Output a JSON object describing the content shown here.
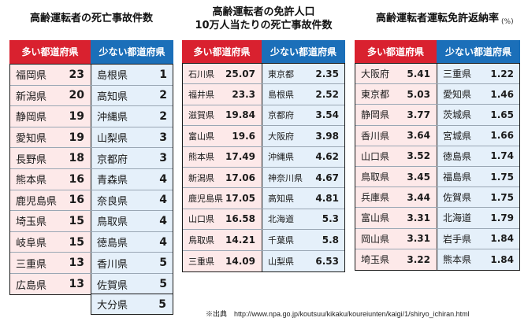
{
  "panel1": {
    "title": "高齢運転者の死亡事故件数",
    "header_many": "多い都道府県",
    "header_few": "少ない都道府県",
    "many": [
      {
        "name": "福岡県",
        "value": "23"
      },
      {
        "name": "新潟県",
        "value": "20"
      },
      {
        "name": "静岡県",
        "value": "19"
      },
      {
        "name": "愛知県",
        "value": "19"
      },
      {
        "name": "長野県",
        "value": "18"
      },
      {
        "name": "熊本県",
        "value": "16"
      },
      {
        "name": "鹿児島県",
        "value": "16"
      },
      {
        "name": "埼玉県",
        "value": "15"
      },
      {
        "name": "岐阜県",
        "value": "15"
      },
      {
        "name": "三重県",
        "value": "13"
      },
      {
        "name": "広島県",
        "value": "13"
      }
    ],
    "few": [
      {
        "name": "島根県",
        "value": "1"
      },
      {
        "name": "高知県",
        "value": "2"
      },
      {
        "name": "沖縄県",
        "value": "2"
      },
      {
        "name": "山梨県",
        "value": "3"
      },
      {
        "name": "京都府",
        "value": "3"
      },
      {
        "name": "青森県",
        "value": "4"
      },
      {
        "name": "奈良県",
        "value": "4"
      },
      {
        "name": "鳥取県",
        "value": "4"
      },
      {
        "name": "徳島県",
        "value": "4"
      },
      {
        "name": "香川県",
        "value": "5"
      },
      {
        "name": "佐賀県",
        "value": "5"
      },
      {
        "name": "大分県",
        "value": "5"
      }
    ]
  },
  "panel2": {
    "title_line1": "高齢運転者の免許人口",
    "title_line2": "10万人当たりの死亡事故件数",
    "header_many": "多い都道府県",
    "header_few": "少ない都道府県",
    "many": [
      {
        "name": "石川県",
        "value": "25.07"
      },
      {
        "name": "福井県",
        "value": "23.3"
      },
      {
        "name": "滋賀県",
        "value": "19.84"
      },
      {
        "name": "富山県",
        "value": "19.6"
      },
      {
        "name": "熊本県",
        "value": "17.49"
      },
      {
        "name": "新潟県",
        "value": "17.06"
      },
      {
        "name": "鹿児島県",
        "value": "17.05"
      },
      {
        "name": "山口県",
        "value": "16.58"
      },
      {
        "name": "鳥取県",
        "value": "14.21"
      },
      {
        "name": "三重県",
        "value": "14.09"
      }
    ],
    "few": [
      {
        "name": "東京都",
        "value": "2.35"
      },
      {
        "name": "島根県",
        "value": "2.52"
      },
      {
        "name": "京都府",
        "value": "3.54"
      },
      {
        "name": "大阪府",
        "value": "3.98"
      },
      {
        "name": "沖縄県",
        "value": "4.62"
      },
      {
        "name": "神奈川県",
        "value": "4.67"
      },
      {
        "name": "高知県",
        "value": "4.81"
      },
      {
        "name": "北海道",
        "value": "5.3"
      },
      {
        "name": "千葉県",
        "value": "5.8"
      },
      {
        "name": "山梨県",
        "value": "6.53"
      }
    ]
  },
  "panel3": {
    "title": "高齢運転者運転免許返納率",
    "unit": "(%)",
    "header_many": "多い都道府県",
    "header_few": "少ない都道府県",
    "many": [
      {
        "name": "大阪府",
        "value": "5.41"
      },
      {
        "name": "東京都",
        "value": "5.03"
      },
      {
        "name": "静岡県",
        "value": "3.77"
      },
      {
        "name": "香川県",
        "value": "3.64"
      },
      {
        "name": "山口県",
        "value": "3.52"
      },
      {
        "name": "鳥取県",
        "value": "3.45"
      },
      {
        "name": "兵庫県",
        "value": "3.44"
      },
      {
        "name": "富山県",
        "value": "3.31"
      },
      {
        "name": "岡山県",
        "value": "3.31"
      },
      {
        "name": "埼玉県",
        "value": "3.22"
      }
    ],
    "few": [
      {
        "name": "三重県",
        "value": "1.22"
      },
      {
        "name": "愛知県",
        "value": "1.46"
      },
      {
        "name": "茨城県",
        "value": "1.65"
      },
      {
        "name": "宮城県",
        "value": "1.66"
      },
      {
        "name": "徳島県",
        "value": "1.74"
      },
      {
        "name": "福島県",
        "value": "1.75"
      },
      {
        "name": "佐賀県",
        "value": "1.75"
      },
      {
        "name": "北海道",
        "value": "1.79"
      },
      {
        "name": "岩手県",
        "value": "1.84"
      },
      {
        "name": "熊本県",
        "value": "1.84"
      }
    ]
  },
  "source": "※出典　http://www.npa.go.jp/koutsuu/kikaku/koureiunten/kaigi/1/shiryo_ichiran.html",
  "colors": {
    "red_header": "#d9212f",
    "blue_header": "#1b6fb9",
    "red_col": "#fde9e9",
    "blue_col": "#e5f0fa"
  }
}
